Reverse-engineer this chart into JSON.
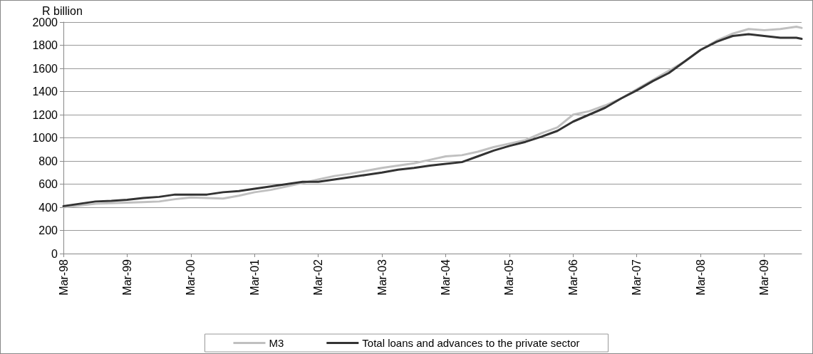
{
  "chart_data": {
    "type": "line",
    "ylabel": "R billion",
    "xlim": [
      "1998-03",
      "2009-10"
    ],
    "xticks": [
      {
        "value": "1998-03",
        "label": "Mar-98"
      },
      {
        "value": "1999-03",
        "label": "Mar-99"
      },
      {
        "value": "2000-03",
        "label": "Mar-00"
      },
      {
        "value": "2001-03",
        "label": "Mar-01"
      },
      {
        "value": "2002-03",
        "label": "Mar-02"
      },
      {
        "value": "2003-03",
        "label": "Mar-03"
      },
      {
        "value": "2004-03",
        "label": "Mar-04"
      },
      {
        "value": "2005-03",
        "label": "Mar-05"
      },
      {
        "value": "2006-03",
        "label": "Mar-06"
      },
      {
        "value": "2007-03",
        "label": "Mar-07"
      },
      {
        "value": "2008-03",
        "label": "Mar-08"
      },
      {
        "value": "2009-03",
        "label": "Mar-09"
      }
    ],
    "ylim": [
      0,
      2000
    ],
    "yticks": [
      0,
      200,
      400,
      600,
      800,
      1000,
      1200,
      1400,
      1600,
      1800,
      2000
    ],
    "grid": "y",
    "legend": "bottom",
    "marker": "none",
    "line_style": "solid",
    "x": [
      "1998-03",
      "1998-06",
      "1998-09",
      "1998-12",
      "1999-03",
      "1999-06",
      "1999-09",
      "1999-12",
      "2000-03",
      "2000-06",
      "2000-09",
      "2000-12",
      "2001-03",
      "2001-06",
      "2001-09",
      "2001-12",
      "2002-03",
      "2002-06",
      "2002-09",
      "2002-12",
      "2003-03",
      "2003-06",
      "2003-09",
      "2003-12",
      "2004-03",
      "2004-06",
      "2004-09",
      "2004-12",
      "2005-03",
      "2005-06",
      "2005-09",
      "2005-12",
      "2006-03",
      "2006-06",
      "2006-09",
      "2006-12",
      "2007-03",
      "2007-06",
      "2007-09",
      "2007-12",
      "2008-03",
      "2008-06",
      "2008-09",
      "2008-12",
      "2009-03",
      "2009-06",
      "2009-09",
      "2009-10"
    ],
    "series": [
      {
        "name": "M3",
        "color": "#c0c0c0",
        "values": [
          400,
          415,
          430,
          435,
          440,
          445,
          450,
          470,
          485,
          480,
          475,
          500,
          530,
          550,
          580,
          610,
          640,
          670,
          690,
          715,
          740,
          760,
          780,
          810,
          840,
          850,
          880,
          920,
          950,
          980,
          1040,
          1090,
          1200,
          1230,
          1280,
          1340,
          1420,
          1500,
          1580,
          1660,
          1760,
          1840,
          1900,
          1940,
          1930,
          1940,
          1960,
          1950
        ]
      },
      {
        "name": "Total loans and advances to the private sector",
        "color": "#333333",
        "values": [
          410,
          430,
          450,
          455,
          465,
          480,
          490,
          510,
          510,
          510,
          530,
          540,
          560,
          580,
          600,
          620,
          620,
          640,
          660,
          680,
          700,
          725,
          740,
          760,
          775,
          790,
          840,
          890,
          930,
          965,
          1010,
          1060,
          1140,
          1200,
          1260,
          1340,
          1410,
          1490,
          1560,
          1660,
          1760,
          1830,
          1880,
          1895,
          1880,
          1865,
          1865,
          1855
        ]
      }
    ]
  }
}
